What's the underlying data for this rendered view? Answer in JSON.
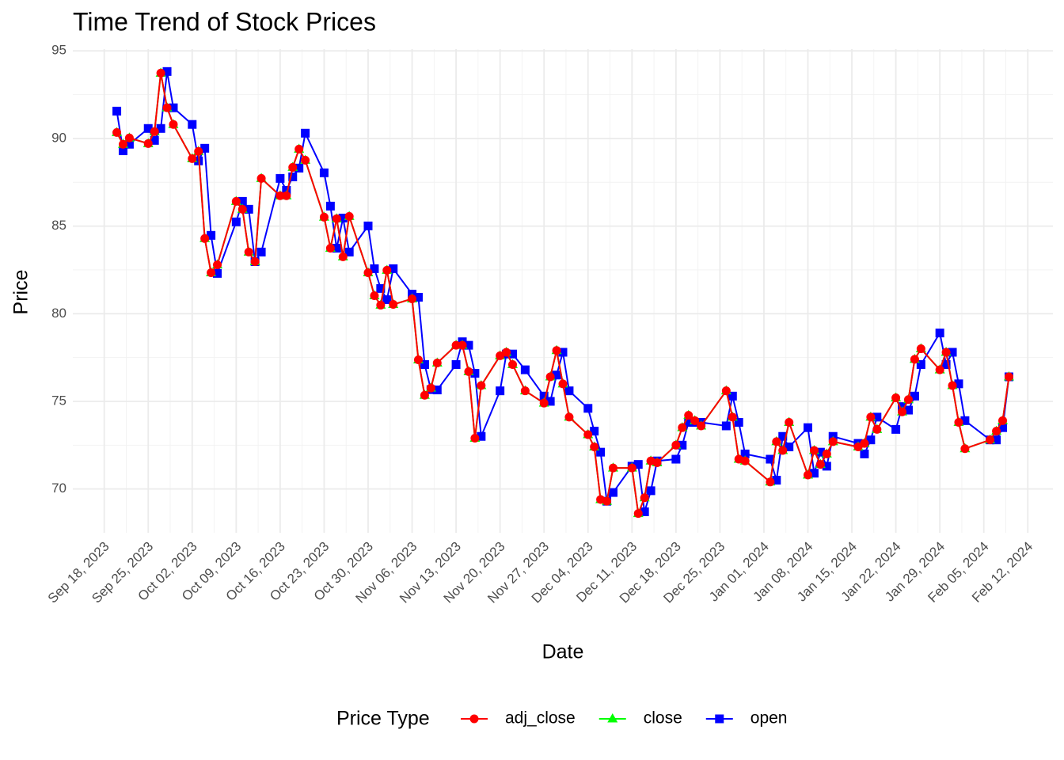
{
  "chart_data": {
    "type": "line",
    "title": "Time Trend of Stock Prices",
    "x_label": "Date",
    "y_label": "Price",
    "legend_title": "Price Type",
    "legend_position": "bottom",
    "grid": true,
    "x": [
      "2023-09-20",
      "2023-09-21",
      "2023-09-22",
      "2023-09-25",
      "2023-09-26",
      "2023-09-27",
      "2023-09-28",
      "2023-09-29",
      "2023-10-02",
      "2023-10-03",
      "2023-10-04",
      "2023-10-05",
      "2023-10-06",
      "2023-10-09",
      "2023-10-10",
      "2023-10-11",
      "2023-10-12",
      "2023-10-13",
      "2023-10-16",
      "2023-10-17",
      "2023-10-18",
      "2023-10-19",
      "2023-10-20",
      "2023-10-23",
      "2023-10-24",
      "2023-10-25",
      "2023-10-26",
      "2023-10-27",
      "2023-10-30",
      "2023-10-31",
      "2023-11-01",
      "2023-11-02",
      "2023-11-03",
      "2023-11-06",
      "2023-11-07",
      "2023-11-08",
      "2023-11-09",
      "2023-11-10",
      "2023-11-13",
      "2023-11-14",
      "2023-11-15",
      "2023-11-16",
      "2023-11-17",
      "2023-11-20",
      "2023-11-21",
      "2023-11-22",
      "2023-11-24",
      "2023-11-27",
      "2023-11-28",
      "2023-11-29",
      "2023-11-30",
      "2023-12-01",
      "2023-12-04",
      "2023-12-05",
      "2023-12-06",
      "2023-12-07",
      "2023-12-08",
      "2023-12-11",
      "2023-12-12",
      "2023-12-13",
      "2023-12-14",
      "2023-12-15",
      "2023-12-18",
      "2023-12-19",
      "2023-12-20",
      "2023-12-21",
      "2023-12-22",
      "2023-12-26",
      "2023-12-27",
      "2023-12-28",
      "2023-12-29",
      "2024-01-02",
      "2024-01-03",
      "2024-01-04",
      "2024-01-05",
      "2024-01-08",
      "2024-01-09",
      "2024-01-10",
      "2024-01-11",
      "2024-01-12",
      "2024-01-16",
      "2024-01-17",
      "2024-01-18",
      "2024-01-19",
      "2024-01-22",
      "2024-01-23",
      "2024-01-24",
      "2024-01-25",
      "2024-01-26",
      "2024-01-29",
      "2024-01-30",
      "2024-01-31",
      "2024-02-01",
      "2024-02-02",
      "2024-02-06",
      "2024-02-07",
      "2024-02-08",
      "2024-02-09"
    ],
    "series": [
      {
        "name": "adj_close",
        "color": "#ff0000",
        "marker": "circle",
        "values": [
          90.34,
          89.67,
          90.03,
          89.71,
          90.39,
          93.73,
          91.75,
          90.8,
          88.85,
          89.26,
          84.29,
          82.34,
          82.79,
          86.41,
          85.96,
          83.52,
          82.97,
          87.72,
          86.73,
          86.73,
          88.35,
          89.39,
          88.76,
          85.51,
          83.74,
          85.42,
          83.25,
          85.55,
          82.34,
          81.03,
          80.49,
          82.48,
          80.53,
          80.85,
          77.37,
          75.35,
          75.76,
          77.19,
          78.2,
          78.2,
          76.7,
          72.9,
          75.9,
          77.6,
          77.8,
          77.1,
          75.6,
          74.9,
          76.4,
          77.9,
          76.0,
          74.1,
          73.1,
          72.4,
          69.4,
          69.3,
          71.2,
          71.2,
          68.6,
          69.5,
          71.6,
          71.5,
          72.5,
          73.5,
          74.2,
          73.9,
          73.6,
          75.6,
          74.1,
          71.7,
          71.6,
          70.4,
          72.7,
          72.2,
          73.8,
          70.8,
          72.2,
          71.4,
          72.0,
          72.7,
          72.4,
          72.6,
          74.1,
          73.4,
          75.2,
          74.4,
          75.1,
          77.4,
          78.0,
          76.8,
          77.8,
          75.9,
          73.8,
          72.3,
          72.8,
          73.3,
          73.9,
          76.4
        ]
      },
      {
        "name": "close",
        "color": "#00ff00",
        "marker": "triangle",
        "values": [
          90.34,
          89.67,
          90.03,
          89.71,
          90.39,
          93.73,
          91.75,
          90.8,
          88.85,
          89.26,
          84.29,
          82.34,
          82.79,
          86.41,
          85.96,
          83.52,
          82.97,
          87.72,
          86.73,
          86.73,
          88.35,
          89.39,
          88.76,
          85.51,
          83.74,
          85.42,
          83.25,
          85.55,
          82.34,
          81.03,
          80.49,
          82.48,
          80.53,
          80.85,
          77.37,
          75.35,
          75.76,
          77.19,
          78.2,
          78.2,
          76.7,
          72.9,
          75.9,
          77.6,
          77.8,
          77.1,
          75.6,
          74.9,
          76.4,
          77.9,
          76.0,
          74.1,
          73.1,
          72.4,
          69.4,
          69.3,
          71.2,
          71.2,
          68.6,
          69.5,
          71.6,
          71.5,
          72.5,
          73.5,
          74.2,
          73.9,
          73.6,
          75.6,
          74.1,
          71.7,
          71.6,
          70.4,
          72.7,
          72.2,
          73.8,
          70.8,
          72.2,
          71.4,
          72.0,
          72.7,
          72.4,
          72.6,
          74.1,
          73.4,
          75.2,
          74.4,
          75.1,
          77.4,
          78.0,
          76.8,
          77.8,
          75.9,
          73.8,
          72.3,
          72.8,
          73.3,
          73.9,
          76.4
        ]
      },
      {
        "name": "open",
        "color": "#0000ff",
        "marker": "square",
        "values": [
          91.56,
          89.3,
          89.67,
          90.57,
          89.89,
          90.57,
          93.82,
          91.75,
          90.8,
          88.72,
          89.44,
          84.47,
          82.3,
          85.24,
          86.41,
          85.96,
          82.97,
          83.52,
          87.72,
          87.04,
          87.81,
          88.31,
          90.3,
          88.04,
          86.14,
          83.74,
          85.46,
          83.52,
          85.01,
          82.57,
          81.44,
          80.8,
          82.57,
          81.12,
          80.94,
          77.1,
          75.67,
          75.65,
          77.1,
          78.4,
          78.2,
          76.6,
          73.0,
          75.6,
          77.7,
          77.7,
          76.8,
          75.3,
          75.0,
          76.5,
          77.8,
          75.6,
          74.6,
          73.3,
          72.1,
          69.3,
          69.8,
          71.3,
          71.4,
          68.7,
          69.9,
          71.6,
          71.7,
          72.5,
          73.8,
          73.8,
          73.8,
          73.6,
          75.3,
          73.8,
          72.0,
          71.7,
          70.5,
          73.0,
          72.4,
          73.5,
          70.9,
          72.1,
          71.3,
          73.0,
          72.6,
          72.0,
          72.8,
          74.1,
          73.4,
          74.7,
          74.5,
          75.3,
          77.1,
          78.9,
          77.1,
          77.8,
          76.0,
          73.9,
          72.8,
          72.8,
          73.5,
          76.4
        ]
      }
    ],
    "xlim": [
      "2023-09-13",
      "2024-02-16"
    ],
    "xticks": [
      {
        "value": "2023-09-18",
        "label": "Sep 18, 2023"
      },
      {
        "value": "2023-09-25",
        "label": "Sep 25, 2023"
      },
      {
        "value": "2023-10-02",
        "label": "Oct 02, 2023"
      },
      {
        "value": "2023-10-09",
        "label": "Oct 09, 2023"
      },
      {
        "value": "2023-10-16",
        "label": "Oct 16, 2023"
      },
      {
        "value": "2023-10-23",
        "label": "Oct 23, 2023"
      },
      {
        "value": "2023-10-30",
        "label": "Oct 30, 2023"
      },
      {
        "value": "2023-11-06",
        "label": "Nov 06, 2023"
      },
      {
        "value": "2023-11-13",
        "label": "Nov 13, 2023"
      },
      {
        "value": "2023-11-20",
        "label": "Nov 20, 2023"
      },
      {
        "value": "2023-11-27",
        "label": "Nov 27, 2023"
      },
      {
        "value": "2023-12-04",
        "label": "Dec 04, 2023"
      },
      {
        "value": "2023-12-11",
        "label": "Dec 11, 2023"
      },
      {
        "value": "2023-12-18",
        "label": "Dec 18, 2023"
      },
      {
        "value": "2023-12-25",
        "label": "Dec 25, 2023"
      },
      {
        "value": "2024-01-01",
        "label": "Jan 01, 2024"
      },
      {
        "value": "2024-01-08",
        "label": "Jan 08, 2024"
      },
      {
        "value": "2024-01-15",
        "label": "Jan 15, 2024"
      },
      {
        "value": "2024-01-22",
        "label": "Jan 22, 2024"
      },
      {
        "value": "2024-01-29",
        "label": "Jan 29, 2024"
      },
      {
        "value": "2024-02-05",
        "label": "Feb 05, 2024"
      },
      {
        "value": "2024-02-12",
        "label": "Feb 12, 2024"
      }
    ],
    "ylim": [
      67.5,
      95.1
    ],
    "yticks": [
      70,
      75,
      80,
      85,
      90,
      95
    ]
  }
}
